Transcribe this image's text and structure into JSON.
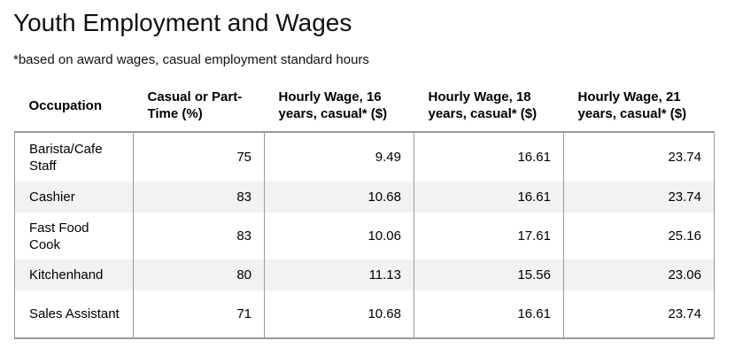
{
  "chart_data": {
    "type": "table",
    "title": "Youth Employment and Wages",
    "subtitle": "*based on award wages, casual employment standard hours",
    "columns": [
      "Occupation",
      "Casual or Part-Time (%)",
      "Hourly Wage, 16 years, casual* ($)",
      "Hourly Wage, 18 years, casual* ($)",
      "Hourly Wage, 21 years, casual* ($)"
    ],
    "rows": [
      [
        "Barista/Cafe Staff",
        "75",
        "9.49",
        "16.61",
        "23.74"
      ],
      [
        "Cashier",
        "83",
        "10.68",
        "16.61",
        "23.74"
      ],
      [
        "Fast Food Cook",
        "83",
        "10.06",
        "17.61",
        "25.16"
      ],
      [
        "Kitchenhand",
        "80",
        "11.13",
        "15.56",
        "23.06"
      ],
      [
        "Sales Assistant",
        "71",
        "10.68",
        "16.61",
        "23.74"
      ]
    ]
  },
  "colors": {
    "border": "#9a9a9a",
    "shaded_row": "#f2f2f2"
  }
}
